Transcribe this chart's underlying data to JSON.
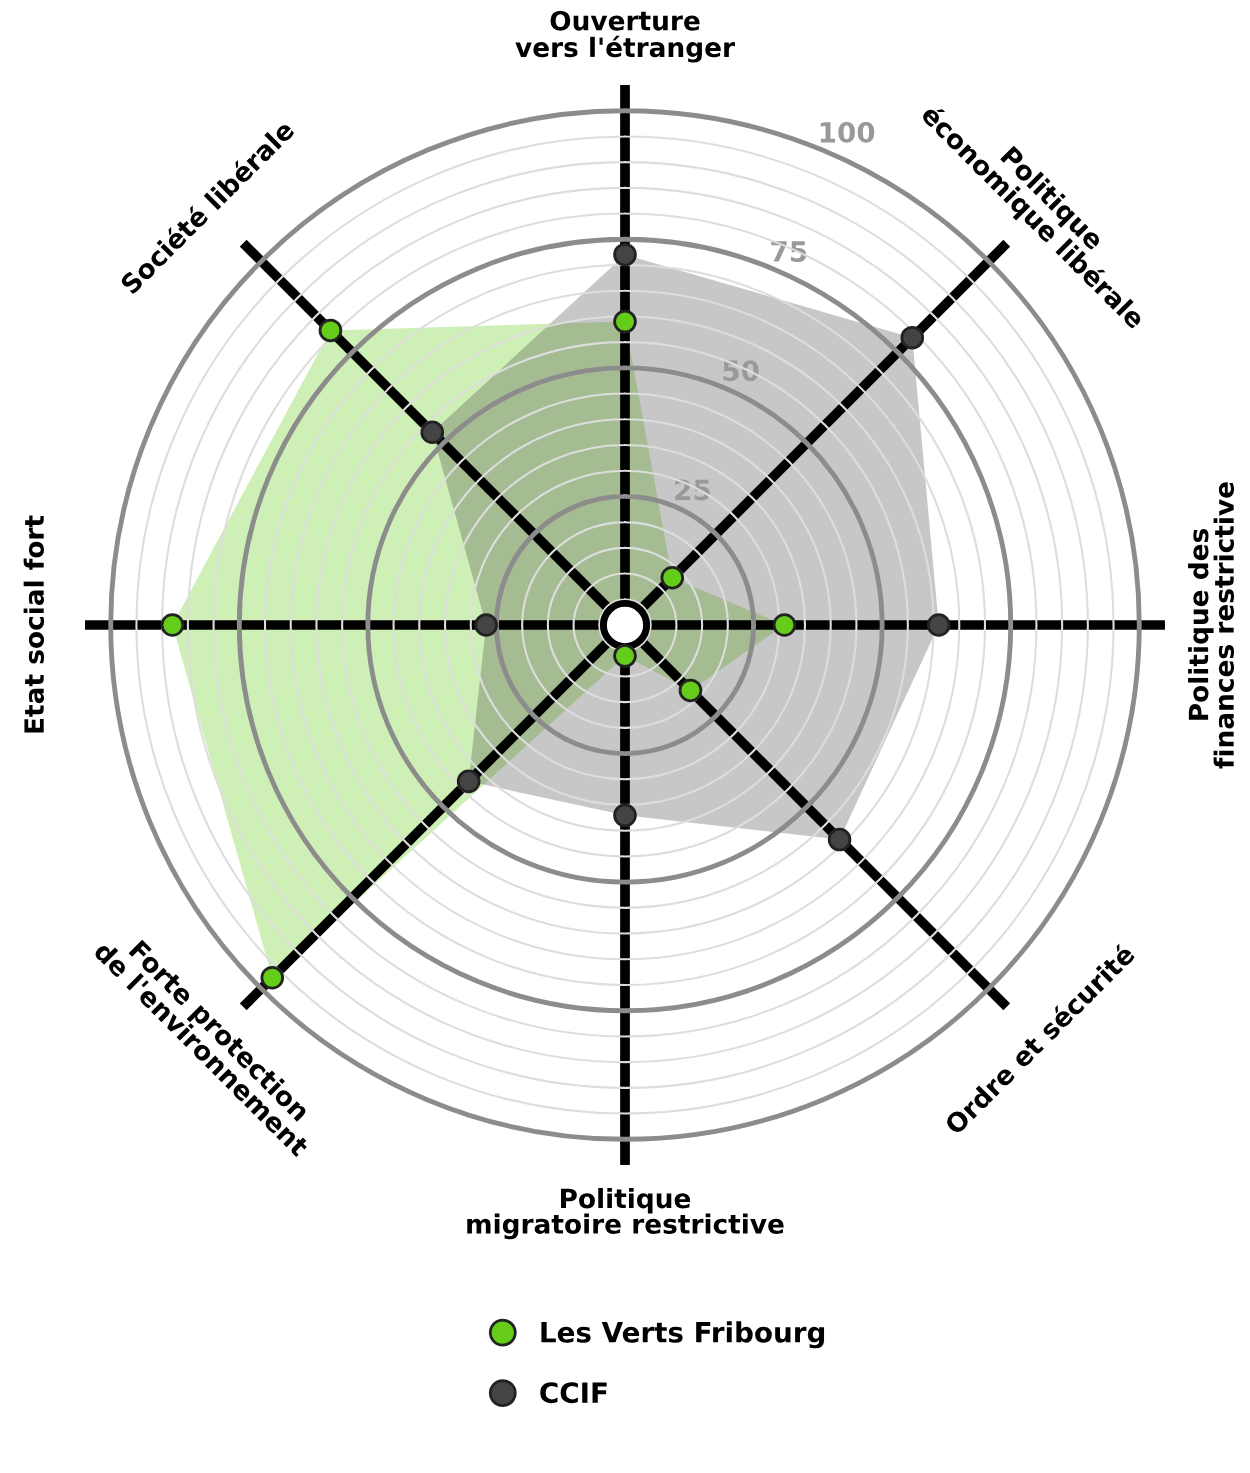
{
  "chart_data": {
    "type": "radar",
    "categories": [
      "Ouverture\nvers l'étranger",
      "Politique\néconomique libérale",
      "Politique des\nfinances restrictive",
      "Ordre et sécurité",
      "Politique\nmigratoire restrictive",
      "Forte protection\nde l'environnement",
      "Etat social fort",
      "Société libérale"
    ],
    "series": [
      {
        "name": "Les Verts Fribourg",
        "color": "#66cc1a",
        "values": [
          59,
          13,
          31,
          18,
          6,
          97,
          88,
          81
        ]
      },
      {
        "name": "CCIF",
        "color": "#444444",
        "values": [
          72,
          79,
          61,
          59,
          37,
          43,
          27,
          53
        ]
      }
    ],
    "ylim": [
      0,
      105
    ],
    "yticks": [
      25,
      50,
      75,
      100
    ],
    "grid": true,
    "marker": "circle",
    "legend": "bottom"
  }
}
